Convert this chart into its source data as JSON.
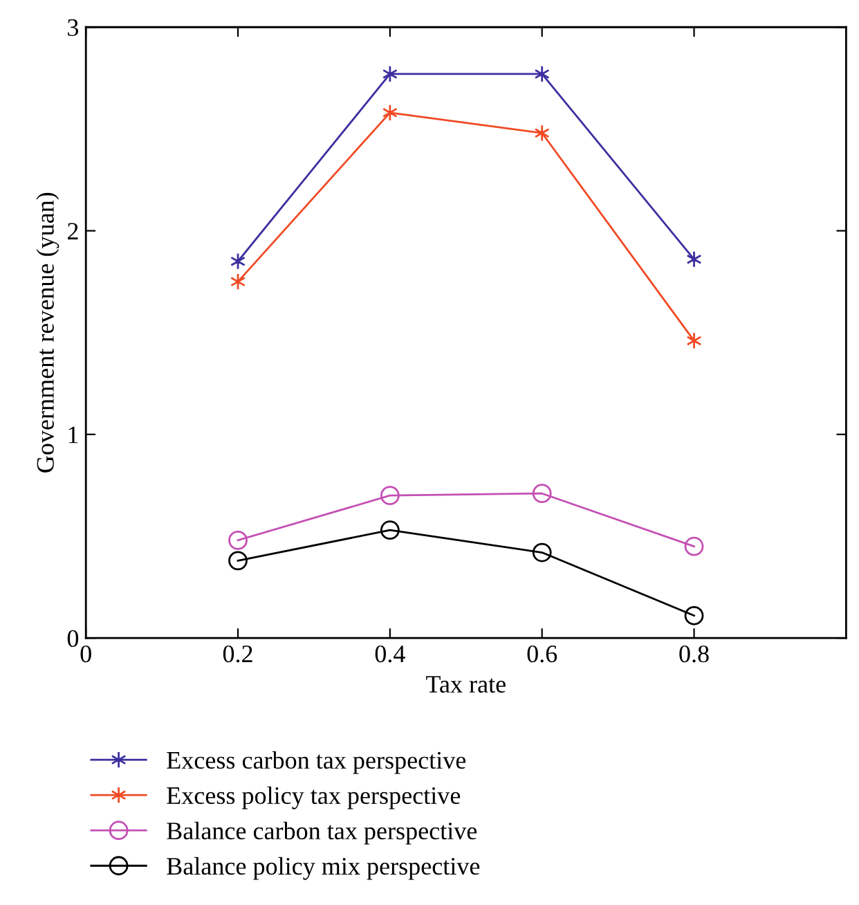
{
  "chart_data": {
    "type": "line",
    "xlabel": "Tax rate",
    "ylabel": "Government revenue (yuan)",
    "x": [
      0.2,
      0.4,
      0.6,
      0.8
    ],
    "xlim": [
      0,
      1
    ],
    "xticks": [
      0,
      0.2,
      0.4,
      0.6,
      0.8
    ],
    "ylim": [
      0,
      3
    ],
    "yticks": [
      0,
      1,
      2,
      3
    ],
    "grid": false,
    "legend": "bottom",
    "line_style": "solid",
    "series": [
      {
        "name": "Excess carbon tax perspective",
        "color": "#3b2fa0",
        "marker": "cross",
        "values": [
          1.85,
          2.77,
          2.77,
          1.86
        ]
      },
      {
        "name": "Excess policy tax perspective",
        "color": "#f04a25",
        "marker": "cross",
        "values": [
          1.75,
          2.58,
          2.48,
          1.46
        ]
      },
      {
        "name": "Balance carbon tax perspective",
        "color": "#c44fb4",
        "marker": "circle",
        "values": [
          0.48,
          0.7,
          0.71,
          0.45
        ]
      },
      {
        "name": "Balance policy mix perspective",
        "color": "#000000",
        "marker": "circle",
        "values": [
          0.38,
          0.53,
          0.42,
          0.11
        ]
      }
    ]
  }
}
